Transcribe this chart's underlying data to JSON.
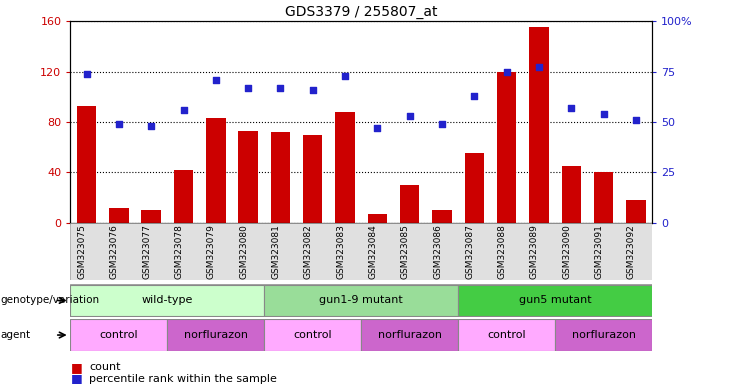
{
  "title": "GDS3379 / 255807_at",
  "samples": [
    "GSM323075",
    "GSM323076",
    "GSM323077",
    "GSM323078",
    "GSM323079",
    "GSM323080",
    "GSM323081",
    "GSM323082",
    "GSM323083",
    "GSM323084",
    "GSM323085",
    "GSM323086",
    "GSM323087",
    "GSM323088",
    "GSM323089",
    "GSM323090",
    "GSM323091",
    "GSM323092"
  ],
  "counts": [
    93,
    12,
    10,
    42,
    83,
    73,
    72,
    70,
    88,
    7,
    30,
    10,
    55,
    120,
    155,
    45,
    40,
    18
  ],
  "percentile_ranks": [
    74,
    49,
    48,
    56,
    71,
    67,
    67,
    66,
    73,
    47,
    53,
    49,
    63,
    75,
    77,
    57,
    54,
    51
  ],
  "bar_color": "#cc0000",
  "dot_color": "#2222cc",
  "left_ylim": [
    0,
    160
  ],
  "right_ylim": [
    0,
    100
  ],
  "left_yticks": [
    0,
    40,
    80,
    120,
    160
  ],
  "left_yticklabels": [
    "0",
    "40",
    "80",
    "120",
    "160"
  ],
  "right_yticks": [
    0,
    25,
    50,
    75,
    100
  ],
  "right_yticklabels": [
    "0",
    "25",
    "50",
    "75",
    "100%"
  ],
  "left_tick_color": "#cc0000",
  "right_tick_color": "#2222cc",
  "genotype_groups": [
    {
      "label": "wild-type",
      "start": 0,
      "end": 6,
      "color": "#ccffcc"
    },
    {
      "label": "gun1-9 mutant",
      "start": 6,
      "end": 12,
      "color": "#99dd99"
    },
    {
      "label": "gun5 mutant",
      "start": 12,
      "end": 18,
      "color": "#44cc44"
    }
  ],
  "agent_groups": [
    {
      "label": "control",
      "start": 0,
      "end": 3,
      "color": "#ffaaff"
    },
    {
      "label": "norflurazon",
      "start": 3,
      "end": 6,
      "color": "#cc66cc"
    },
    {
      "label": "control",
      "start": 6,
      "end": 9,
      "color": "#ffaaff"
    },
    {
      "label": "norflurazon",
      "start": 9,
      "end": 12,
      "color": "#cc66cc"
    },
    {
      "label": "control",
      "start": 12,
      "end": 15,
      "color": "#ffaaff"
    },
    {
      "label": "norflurazon",
      "start": 15,
      "end": 18,
      "color": "#cc66cc"
    }
  ],
  "genotype_label": "genotype/variation",
  "agent_label": "agent",
  "legend_count_color": "#cc0000",
  "legend_dot_color": "#2222cc"
}
